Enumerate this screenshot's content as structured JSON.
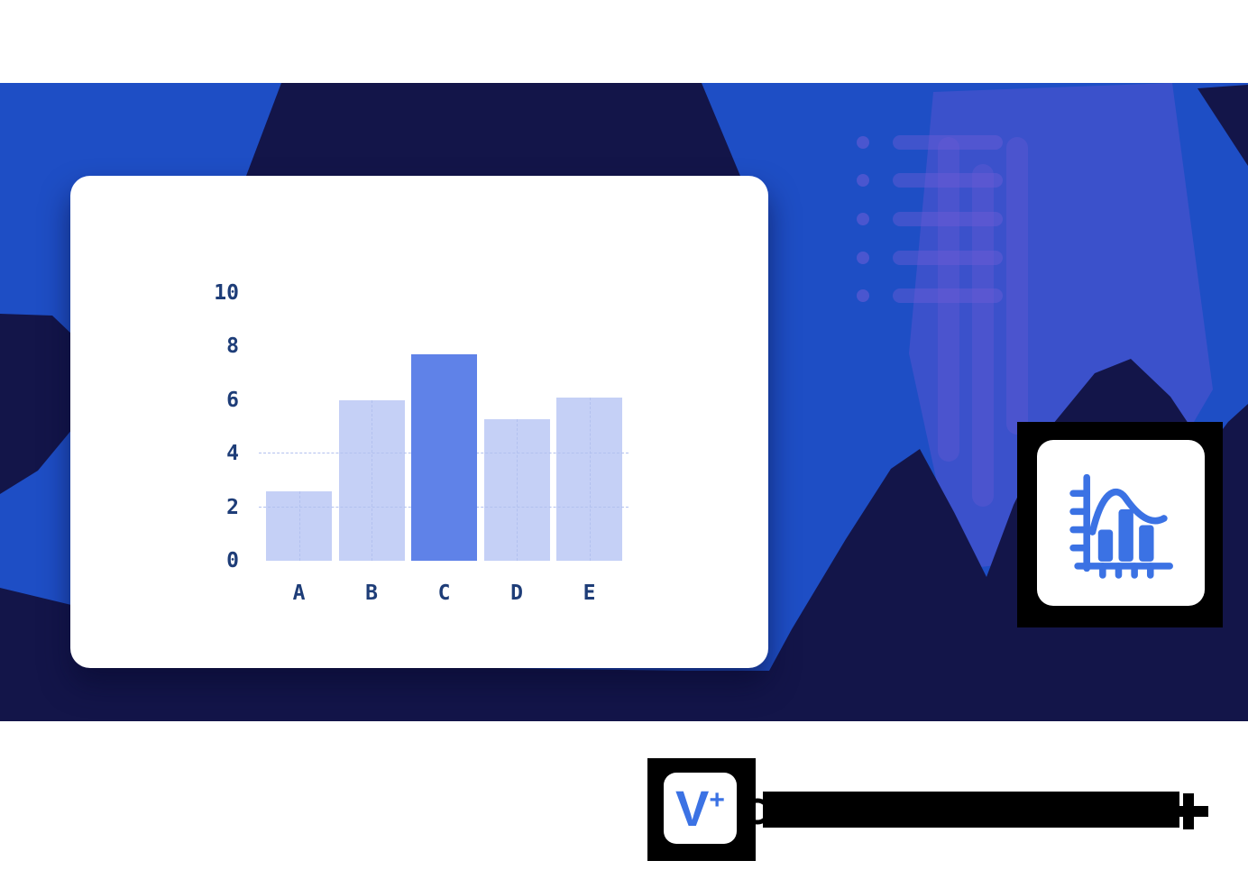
{
  "colors": {
    "banner_blue": "#1e4ec5",
    "navy": "#131549",
    "accent_blue": "#3b72e4",
    "bar_light": "#c5d0f6",
    "bar_highlight": "#5f82e8",
    "axis_label": "#1e3d78",
    "grid_dash": "#b3c1ef",
    "card_white": "#ffffff",
    "frame_black": "#000000",
    "purple_accent": "rgba(108,86,212,0.38)"
  },
  "chart_data": {
    "type": "bar",
    "title": "",
    "xlabel": "",
    "ylabel": "",
    "categories": [
      "A",
      "B",
      "C",
      "D",
      "E"
    ],
    "values": [
      2.6,
      6.0,
      7.7,
      5.3,
      6.1
    ],
    "highlight_index": 2,
    "ylim": [
      0,
      10
    ],
    "yticks": [
      0,
      2,
      4,
      6,
      8,
      10
    ],
    "grid_values": [
      2,
      4
    ],
    "grid": "dashed",
    "legend": "none"
  },
  "icon_card": {
    "icon": "histogram-bell-curve"
  },
  "logo": {
    "mark": "V",
    "plus": "+"
  }
}
